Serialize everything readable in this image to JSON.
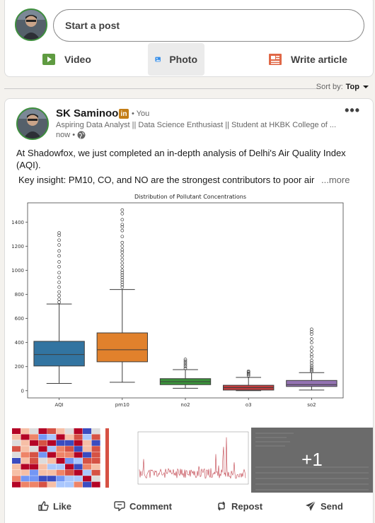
{
  "composer": {
    "placeholder": "Start a post",
    "actions": [
      {
        "label": "Video",
        "icon": "video-icon",
        "color": "#5f9b41"
      },
      {
        "label": "Photo",
        "icon": "photo-icon",
        "color": "#378fe9"
      },
      {
        "label": "Write article",
        "icon": "article-icon",
        "color": "#e06847"
      }
    ]
  },
  "feed": {
    "sort_label": "Sort by:",
    "sort_value": "Top"
  },
  "post": {
    "author_name": "SK Saminoor",
    "badge": "in",
    "you_label": "• You",
    "headline": "Aspiring Data Analyst || Data Science Enthusiast || Student at HKBK College of ...",
    "time": "now •",
    "text_line1": "At Shadowfox, we just completed an in-depth analysis of Delhi's Air Quality Index (AQI).",
    "text_line2": "Key insight: PM10, CO, and NO are the strongest contributors to poor air",
    "see_more": "...more",
    "extra_images_count": "+1",
    "actions": {
      "like": "Like",
      "comment": "Comment",
      "repost": "Repost",
      "send": "Send"
    }
  },
  "colors": {
    "aqi": "#3274a1",
    "pm10": "#e1812c",
    "no2": "#3a923a",
    "o3": "#c03d3e",
    "so2": "#9372b2",
    "badge": "#c37d16"
  },
  "chart_data": {
    "type": "box",
    "title": "Distribution of Pollutant Concentrations",
    "xlabel": "",
    "ylabel": "",
    "categories": [
      "AQI",
      "pm10",
      "no2",
      "o3",
      "so2"
    ],
    "ylim": [
      -60,
      1560
    ],
    "yticks": [
      0,
      200,
      400,
      600,
      800,
      1000,
      1200,
      1400
    ],
    "grid": false,
    "series": [
      {
        "name": "AQI",
        "min": 60,
        "q1": 205,
        "median": 300,
        "q3": 410,
        "max": 720,
        "outliers": [
          735,
          760,
          790,
          820,
          860,
          900,
          940,
          980,
          1030,
          1070,
          1120,
          1160,
          1210,
          1250,
          1290,
          1310
        ]
      },
      {
        "name": "pm10",
        "min": 70,
        "q1": 240,
        "median": 340,
        "q3": 480,
        "max": 840,
        "outliers": [
          860,
          880,
          900,
          920,
          940,
          960,
          980,
          1000,
          1030,
          1060,
          1090,
          1120,
          1150,
          1170,
          1200,
          1230,
          1280,
          1330,
          1360,
          1380,
          1420,
          1470,
          1500
        ]
      },
      {
        "name": "no2",
        "min": 20,
        "q1": 50,
        "median": 75,
        "q3": 100,
        "max": 175,
        "outliers": [
          185,
          200,
          215,
          230,
          245,
          260
        ]
      },
      {
        "name": "o3",
        "min": 0,
        "q1": 5,
        "median": 25,
        "q3": 45,
        "max": 110,
        "outliers": [
          125,
          135,
          145,
          155,
          162
        ]
      },
      {
        "name": "so2",
        "min": 5,
        "q1": 35,
        "median": 50,
        "q3": 85,
        "max": 150,
        "outliers": [
          160,
          170,
          180,
          195,
          210,
          230,
          250,
          280,
          300,
          330,
          360,
          400,
          430,
          470,
          490,
          510
        ]
      }
    ]
  }
}
